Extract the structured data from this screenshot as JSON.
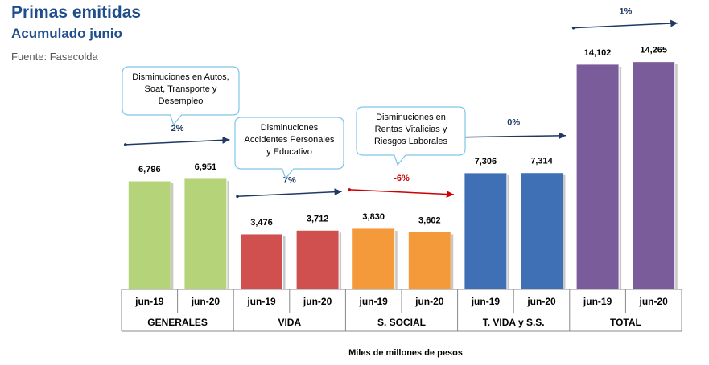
{
  "header": {
    "title": "Primas emitidas",
    "subtitle": "Acumulado junio",
    "source": "Fuente: Fasecolda"
  },
  "chart_data": {
    "type": "bar",
    "xlabel": "Miles de millones de pesos",
    "groups": [
      {
        "name": "GENERALES",
        "color": "#b5d47a",
        "categories": [
          "jun-19",
          "jun-20"
        ],
        "values": [
          6796,
          6951
        ],
        "value_labels": [
          "6,796",
          "6,951"
        ],
        "change": "2%",
        "direction": "up",
        "change_color": "#1f3864"
      },
      {
        "name": "VIDA",
        "color": "#d05050",
        "categories": [
          "jun-19",
          "jun-20"
        ],
        "values": [
          3476,
          3712
        ],
        "value_labels": [
          "3,476",
          "3,712"
        ],
        "change": "7%",
        "direction": "up",
        "change_color": "#1f3864"
      },
      {
        "name": "S. SOCIAL",
        "color": "#f59a3a",
        "categories": [
          "jun-19",
          "jun-20"
        ],
        "values": [
          3830,
          3602
        ],
        "value_labels": [
          "3,830",
          "3,602"
        ],
        "change": "-6%",
        "direction": "down",
        "change_color": "#d00000"
      },
      {
        "name": "T. VIDA y S.S.",
        "color": "#3f6fb5",
        "categories": [
          "jun-19",
          "jun-20"
        ],
        "values": [
          7306,
          7314
        ],
        "value_labels": [
          "7,306",
          "7,314"
        ],
        "change": "0%",
        "direction": "flat",
        "change_color": "#1f3864"
      },
      {
        "name": "TOTAL",
        "color": "#7b5c9a",
        "categories": [
          "jun-19",
          "jun-20"
        ],
        "values": [
          14102,
          14265
        ],
        "value_labels": [
          "14,102",
          "14,265"
        ],
        "change": "1%",
        "direction": "up",
        "change_color": "#1f3864"
      }
    ],
    "ylim": [
      0,
      14600
    ],
    "callouts": [
      {
        "group": 0,
        "lines": [
          "Disminuciones en Autos,",
          "Soat, Transporte y",
          "Desempleo"
        ]
      },
      {
        "group": 1,
        "lines": [
          "Disminuciones",
          "Accidentes Personales",
          "y Educativo"
        ]
      },
      {
        "group": 2,
        "lines": [
          "Disminuciones en",
          "Rentas Vitalicias y",
          "Riesgos Laborales"
        ]
      }
    ]
  }
}
